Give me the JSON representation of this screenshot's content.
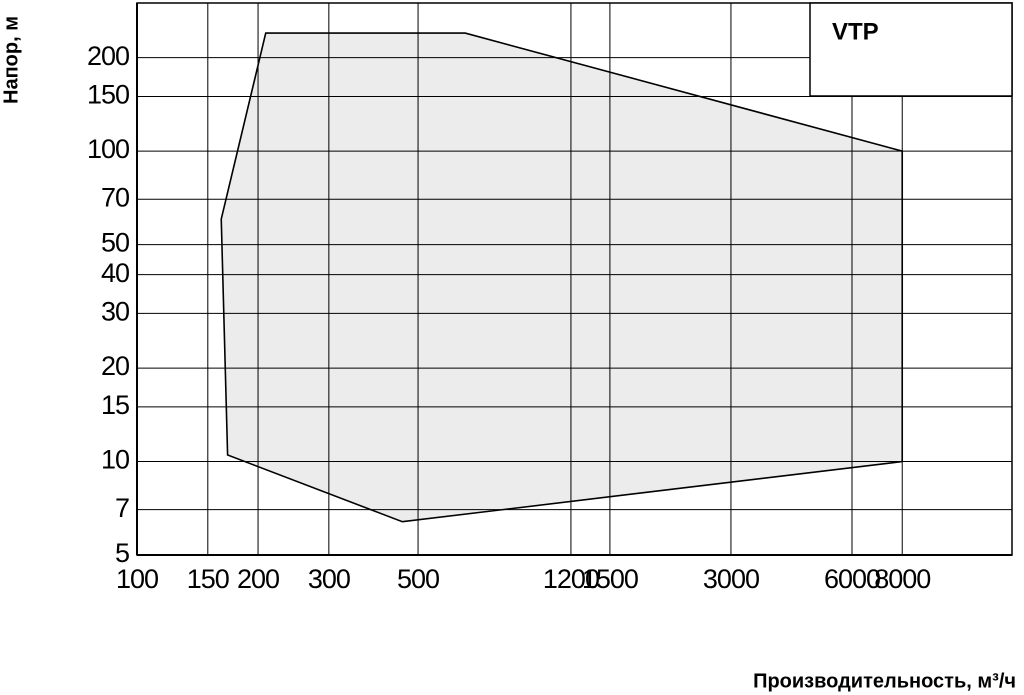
{
  "chart_data": {
    "type": "area",
    "title": null,
    "x_label": "Производительность, м³/ч",
    "y_label": "Напор, м",
    "x_log": true,
    "y_log": true,
    "grid": true,
    "legend": "top-right",
    "series": [
      {
        "name": "VTP",
        "color": "#ececec",
        "x": [
          209,
          655,
          8000,
          8000,
          457,
          168,
          162,
          209
        ],
        "values": [
          240,
          240,
          100,
          10,
          6.4,
          10.5,
          60.4,
          240
        ]
      }
    ],
    "xlim": [
      100,
      15000
    ],
    "xticks": [
      100,
      150,
      200,
      300,
      500,
      1200,
      1500,
      3000,
      6000,
      8000
    ],
    "ylim": [
      5,
      300
    ],
    "yticks": [
      5,
      7,
      10,
      15,
      20,
      30,
      40,
      50,
      70,
      100,
      150,
      200
    ]
  }
}
